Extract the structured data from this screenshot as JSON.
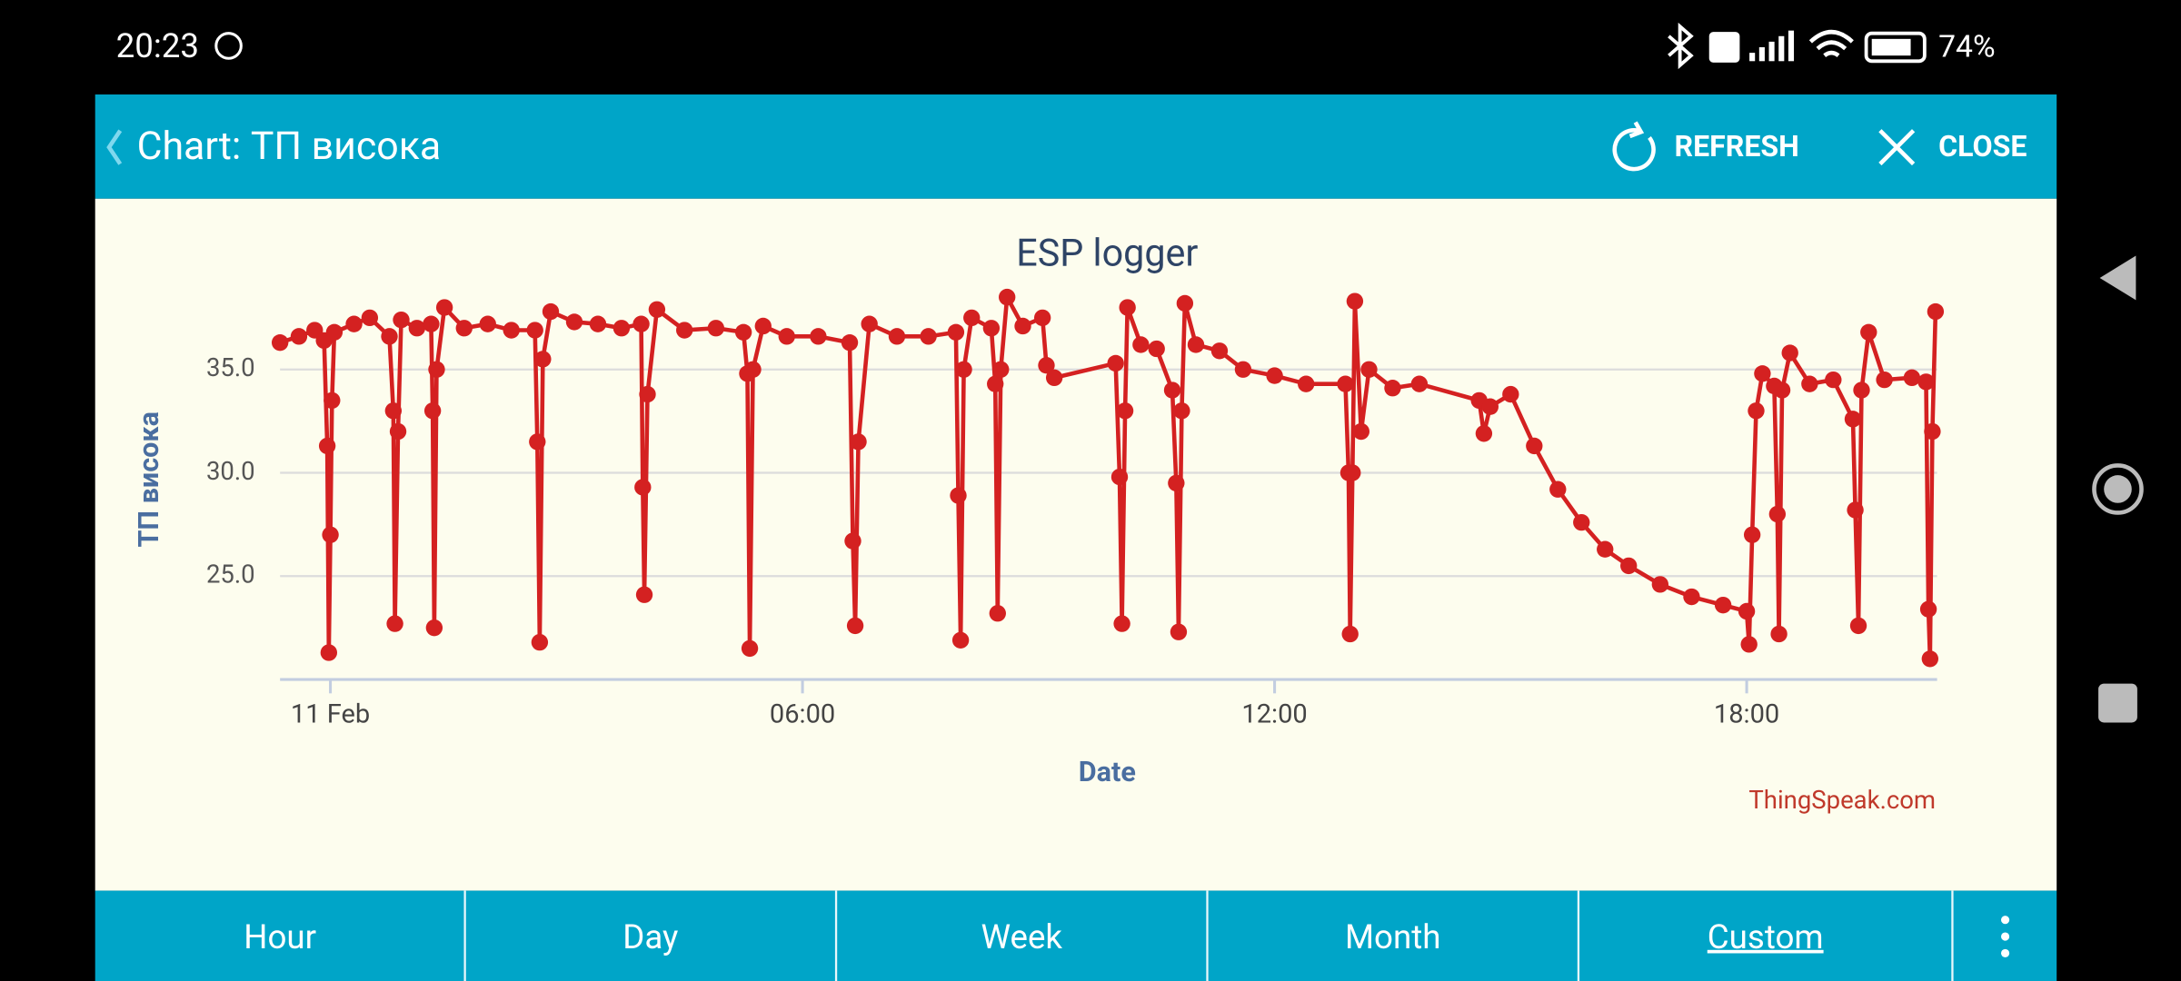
{
  "status_bar": {
    "time": "20:23",
    "battery": "74%"
  },
  "header": {
    "title": "Chart: ТП висока",
    "refresh": "REFRESH",
    "close": "CLOSE"
  },
  "chart_data": {
    "type": "line",
    "title": "ESP logger",
    "y_label": "ТП висока",
    "x_label": "Date",
    "credit": "ThingSpeak.com",
    "color": "#d42121",
    "x": [
      -0.64,
      -0.4,
      -0.2,
      -0.08,
      -0.04,
      -0.02,
      0.0,
      0.02,
      0.05,
      0.3,
      0.5,
      0.75,
      0.8,
      0.82,
      0.86,
      0.9,
      1.1,
      1.28,
      1.3,
      1.32,
      1.35,
      1.45,
      1.7,
      2.0,
      2.3,
      2.6,
      2.63,
      2.66,
      2.7,
      2.8,
      3.1,
      3.4,
      3.7,
      3.95,
      3.97,
      3.99,
      4.03,
      4.15,
      4.5,
      4.9,
      5.25,
      5.3,
      5.33,
      5.37,
      5.5,
      5.8,
      6.2,
      6.6,
      6.64,
      6.67,
      6.71,
      6.85,
      7.2,
      7.6,
      7.95,
      7.98,
      8.01,
      8.05,
      8.15,
      8.4,
      8.45,
      8.48,
      8.52,
      8.6,
      8.8,
      9.05,
      9.1,
      9.2,
      9.98,
      10.03,
      10.06,
      10.1,
      10.13,
      10.3,
      10.5,
      10.7,
      10.75,
      10.78,
      10.82,
      10.86,
      11.0,
      11.3,
      11.6,
      12.0,
      12.4,
      12.9,
      12.94,
      12.96,
      12.99,
      13.02,
      13.1,
      13.2,
      13.5,
      13.84,
      14.6,
      14.66,
      14.74,
      15.0,
      15.3,
      15.6,
      15.9,
      16.2,
      16.5,
      16.9,
      17.3,
      17.7,
      18.0,
      18.03,
      18.07,
      18.12,
      18.2,
      18.35,
      18.39,
      18.41,
      18.45,
      18.55,
      18.8,
      19.1,
      19.35,
      19.38,
      19.42,
      19.46,
      19.55,
      19.75,
      20.1,
      20.28,
      20.31,
      20.33,
      20.36,
      20.4
    ],
    "values": [
      36.3,
      36.6,
      36.9,
      36.4,
      31.3,
      21.3,
      27,
      33.5,
      36.8,
      37.2,
      37.5,
      36.6,
      33,
      22.7,
      32,
      37.4,
      37,
      37.2,
      33,
      22.5,
      35,
      38,
      37,
      37.2,
      36.9,
      36.9,
      31.5,
      21.8,
      35.5,
      37.8,
      37.3,
      37.2,
      37,
      37.2,
      29.3,
      24.1,
      33.8,
      37.9,
      36.9,
      37,
      36.8,
      34.8,
      21.5,
      35,
      37.1,
      36.6,
      36.6,
      36.3,
      26.7,
      22.6,
      31.5,
      37.2,
      36.6,
      36.6,
      36.8,
      28.9,
      21.9,
      35,
      37.5,
      37,
      34.3,
      23.2,
      35,
      38.5,
      37.1,
      37.5,
      35.2,
      34.6,
      35.3,
      29.8,
      22.7,
      33,
      38,
      36.2,
      36,
      34,
      29.5,
      22.3,
      33,
      38.2,
      36.2,
      35.9,
      35,
      34.7,
      34.3,
      34.3,
      30,
      22.2,
      30,
      38.3,
      32,
      35,
      34.1,
      34.3,
      33.5,
      31.9,
      33.2,
      33.8,
      31.3,
      29.2,
      27.6,
      26.3,
      25.5,
      24.6,
      24,
      23.6,
      23.3,
      21.7,
      27,
      33,
      34.8,
      34.2,
      28,
      22.2,
      34,
      35.8,
      34.3,
      34.5,
      32.6,
      28.2,
      22.6,
      34,
      36.8,
      34.5,
      34.6,
      34.4,
      23.4,
      21,
      32,
      37.8
    ],
    "xlim": [
      -0.64,
      20.42
    ],
    "xticks": [
      {
        "value": 0,
        "label": "11 Feb"
      },
      {
        "value": 6,
        "label": "06:00"
      },
      {
        "value": 12,
        "label": "12:00"
      },
      {
        "value": 18,
        "label": "18:00"
      }
    ],
    "ylim": [
      20,
      39
    ],
    "yticks": [
      {
        "value": 25,
        "label": "25.0"
      },
      {
        "value": 30,
        "label": "30.0"
      },
      {
        "value": 35,
        "label": "35.0"
      }
    ],
    "grid": true
  },
  "tabs": [
    "Hour",
    "Day",
    "Week",
    "Month",
    "Custom"
  ]
}
